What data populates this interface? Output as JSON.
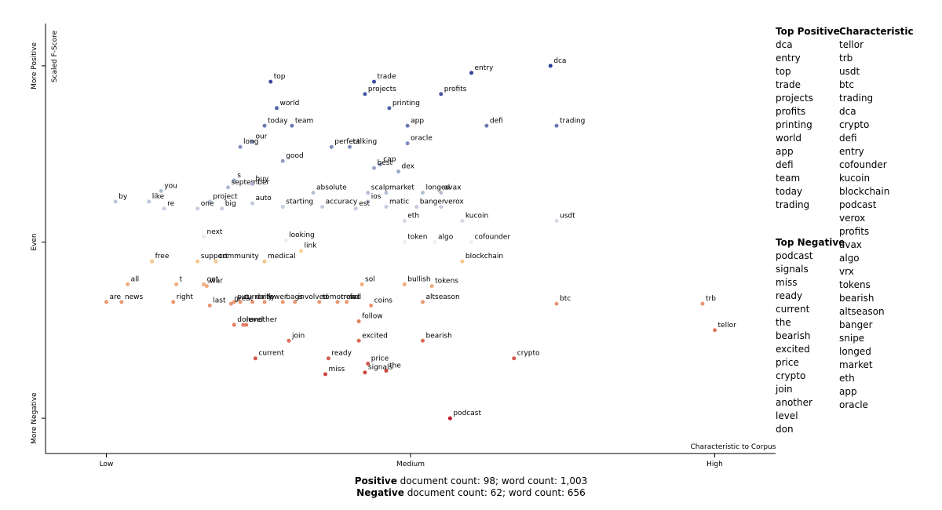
{
  "chart_data": {
    "type": "scatter",
    "x_label": "Characteristic to Corpus",
    "y_label": "Scaled F-Score",
    "xlim": [
      -0.1,
      1.1
    ],
    "ylim": [
      -1.2,
      1.24
    ],
    "xticks": [
      {
        "value": 0,
        "label": "Low"
      },
      {
        "value": 0.5,
        "label": "Medium"
      },
      {
        "value": 1,
        "label": "High"
      }
    ],
    "yticks": [
      {
        "value": 1,
        "label": "More Positive"
      },
      {
        "value": 0,
        "label": "Even"
      },
      {
        "value": -1,
        "label": "More Negative"
      }
    ],
    "points": [
      {
        "label": "top",
        "x": 0.27,
        "y": 0.91
      },
      {
        "label": "trade",
        "x": 0.44,
        "y": 0.91
      },
      {
        "label": "entry",
        "x": 0.6,
        "y": 0.96
      },
      {
        "label": "dca",
        "x": 0.73,
        "y": 1.0
      },
      {
        "label": "projects",
        "x": 0.425,
        "y": 0.84
      },
      {
        "label": "profits",
        "x": 0.55,
        "y": 0.84
      },
      {
        "label": "world",
        "x": 0.28,
        "y": 0.76
      },
      {
        "label": "printing",
        "x": 0.465,
        "y": 0.76
      },
      {
        "label": "today",
        "x": 0.26,
        "y": 0.66
      },
      {
        "label": "team",
        "x": 0.305,
        "y": 0.66
      },
      {
        "label": "app",
        "x": 0.495,
        "y": 0.66
      },
      {
        "label": "defi",
        "x": 0.625,
        "y": 0.66
      },
      {
        "label": "trading",
        "x": 0.74,
        "y": 0.66
      },
      {
        "label": "our",
        "x": 0.24,
        "y": 0.57
      },
      {
        "label": "long",
        "x": 0.22,
        "y": 0.54
      },
      {
        "label": "oracle",
        "x": 0.495,
        "y": 0.56
      },
      {
        "label": "perfect",
        "x": 0.37,
        "y": 0.54
      },
      {
        "label": "talking",
        "x": 0.4,
        "y": 0.54
      },
      {
        "label": "good",
        "x": 0.29,
        "y": 0.46
      },
      {
        "label": "cap",
        "x": 0.45,
        "y": 0.44
      },
      {
        "label": "best",
        "x": 0.44,
        "y": 0.42
      },
      {
        "label": "dex",
        "x": 0.48,
        "y": 0.4
      },
      {
        "label": "s",
        "x": 0.21,
        "y": 0.35
      },
      {
        "label": "september",
        "x": 0.2,
        "y": 0.31
      },
      {
        "label": "buy",
        "x": 0.24,
        "y": 0.33
      },
      {
        "label": "you",
        "x": 0.09,
        "y": 0.29
      },
      {
        "label": "absolute",
        "x": 0.34,
        "y": 0.28
      },
      {
        "label": "scalp",
        "x": 0.43,
        "y": 0.28
      },
      {
        "label": "market",
        "x": 0.46,
        "y": 0.28
      },
      {
        "label": "longed",
        "x": 0.52,
        "y": 0.28
      },
      {
        "label": "avax",
        "x": 0.55,
        "y": 0.28
      },
      {
        "label": "by",
        "x": 0.015,
        "y": 0.23
      },
      {
        "label": "like",
        "x": 0.07,
        "y": 0.23
      },
      {
        "label": "project",
        "x": 0.17,
        "y": 0.23
      },
      {
        "label": "ios",
        "x": 0.43,
        "y": 0.23
      },
      {
        "label": "re",
        "x": 0.095,
        "y": 0.19
      },
      {
        "label": "one",
        "x": 0.15,
        "y": 0.19
      },
      {
        "label": "big",
        "x": 0.19,
        "y": 0.19
      },
      {
        "label": "auto",
        "x": 0.24,
        "y": 0.22
      },
      {
        "label": "starting",
        "x": 0.29,
        "y": 0.2
      },
      {
        "label": "accuracy",
        "x": 0.355,
        "y": 0.2
      },
      {
        "label": "est",
        "x": 0.41,
        "y": 0.19
      },
      {
        "label": "matic",
        "x": 0.46,
        "y": 0.2
      },
      {
        "label": "banger",
        "x": 0.51,
        "y": 0.2
      },
      {
        "label": "verox",
        "x": 0.55,
        "y": 0.2
      },
      {
        "label": "eth",
        "x": 0.49,
        "y": 0.12
      },
      {
        "label": "kucoin",
        "x": 0.585,
        "y": 0.12
      },
      {
        "label": "usdt",
        "x": 0.74,
        "y": 0.12
      },
      {
        "label": "next",
        "x": 0.16,
        "y": 0.03
      },
      {
        "label": "looking",
        "x": 0.295,
        "y": 0.01
      },
      {
        "label": "token",
        "x": 0.49,
        "y": 0.0
      },
      {
        "label": "algo",
        "x": 0.54,
        "y": 0.0
      },
      {
        "label": "cofounder",
        "x": 0.6,
        "y": 0.0
      },
      {
        "label": "link",
        "x": 0.32,
        "y": -0.05
      },
      {
        "label": "free",
        "x": 0.075,
        "y": -0.11
      },
      {
        "label": "support",
        "x": 0.15,
        "y": -0.11
      },
      {
        "label": "medical",
        "x": 0.26,
        "y": -0.11
      },
      {
        "label": "community",
        "x": 0.18,
        "y": -0.11
      },
      {
        "label": "blockchain",
        "x": 0.585,
        "y": -0.11
      },
      {
        "label": "all",
        "x": 0.035,
        "y": -0.24
      },
      {
        "label": "t",
        "x": 0.115,
        "y": -0.24
      },
      {
        "label": "get",
        "x": 0.16,
        "y": -0.24
      },
      {
        "label": "war",
        "x": 0.165,
        "y": -0.25
      },
      {
        "label": "put",
        "x": 0.21,
        "y": -0.34
      },
      {
        "label": "currently",
        "x": 0.22,
        "y": -0.34
      },
      {
        "label": "involved",
        "x": 0.31,
        "y": -0.34
      },
      {
        "label": "trend",
        "x": 0.38,
        "y": -0.34
      },
      {
        "label": "fed",
        "x": 0.395,
        "y": -0.34
      },
      {
        "label": "daily",
        "x": 0.24,
        "y": -0.34
      },
      {
        "label": "lower",
        "x": 0.26,
        "y": -0.34
      },
      {
        "label": "bags",
        "x": 0.29,
        "y": -0.34
      },
      {
        "label": "tomorrow",
        "x": 0.35,
        "y": -0.34
      },
      {
        "label": "great",
        "x": 0.205,
        "y": -0.35
      },
      {
        "label": "sol",
        "x": 0.42,
        "y": -0.24
      },
      {
        "label": "bullish",
        "x": 0.49,
        "y": -0.24
      },
      {
        "label": "tokens",
        "x": 0.535,
        "y": -0.25
      },
      {
        "label": "are",
        "x": 0.0,
        "y": -0.34
      },
      {
        "label": "news",
        "x": 0.025,
        "y": -0.34
      },
      {
        "label": "right",
        "x": 0.11,
        "y": -0.34
      },
      {
        "label": "last",
        "x": 0.17,
        "y": -0.36
      },
      {
        "label": "coins",
        "x": 0.435,
        "y": -0.36
      },
      {
        "label": "altseason",
        "x": 0.52,
        "y": -0.34
      },
      {
        "label": "btc",
        "x": 0.74,
        "y": -0.35
      },
      {
        "label": "trb",
        "x": 0.98,
        "y": -0.35
      },
      {
        "label": "follow",
        "x": 0.415,
        "y": -0.45
      },
      {
        "label": "don",
        "x": 0.21,
        "y": -0.47
      },
      {
        "label": "level",
        "x": 0.225,
        "y": -0.47
      },
      {
        "label": "another",
        "x": 0.23,
        "y": -0.47
      },
      {
        "label": "tellor",
        "x": 1.0,
        "y": -0.5
      },
      {
        "label": "join",
        "x": 0.3,
        "y": -0.56
      },
      {
        "label": "excited",
        "x": 0.415,
        "y": -0.56
      },
      {
        "label": "bearish",
        "x": 0.52,
        "y": -0.56
      },
      {
        "label": "current",
        "x": 0.245,
        "y": -0.66
      },
      {
        "label": "ready",
        "x": 0.365,
        "y": -0.66
      },
      {
        "label": "price",
        "x": 0.43,
        "y": -0.69
      },
      {
        "label": "the",
        "x": 0.46,
        "y": -0.73
      },
      {
        "label": "crypto",
        "x": 0.67,
        "y": -0.66
      },
      {
        "label": "miss",
        "x": 0.36,
        "y": -0.75
      },
      {
        "label": "signals",
        "x": 0.425,
        "y": -0.74
      },
      {
        "label": "podcast",
        "x": 0.565,
        "y": -1.0
      }
    ]
  },
  "top_positive": {
    "title": "Top Positive",
    "items": [
      "dca",
      "entry",
      "top",
      "trade",
      "projects",
      "profits",
      "printing",
      "world",
      "app",
      "defi",
      "team",
      "today",
      "trading"
    ]
  },
  "top_negative": {
    "title": "Top Negative",
    "items": [
      "podcast",
      "signals",
      "miss",
      "ready",
      "current",
      "the",
      "bearish",
      "excited",
      "price",
      "crypto",
      "join",
      "another",
      "level",
      "don"
    ]
  },
  "characteristic": {
    "title": "Characteristic",
    "items": [
      "tellor",
      "trb",
      "usdt",
      "btc",
      "trading",
      "dca",
      "crypto",
      "defi",
      "entry",
      "cofounder",
      "kucoin",
      "blockchain",
      "podcast",
      "verox",
      "profits",
      "avax",
      "algo",
      "vrx",
      "tokens",
      "bearish",
      "altseason",
      "banger",
      "snipe",
      "longed",
      "market",
      "eth",
      "app",
      "oracle"
    ]
  },
  "footer": [
    {
      "label": "Positive",
      "text": "document count: 98; word count: 1,003"
    },
    {
      "label": "Negative",
      "text": "document count: 62; word count: 656"
    }
  ]
}
